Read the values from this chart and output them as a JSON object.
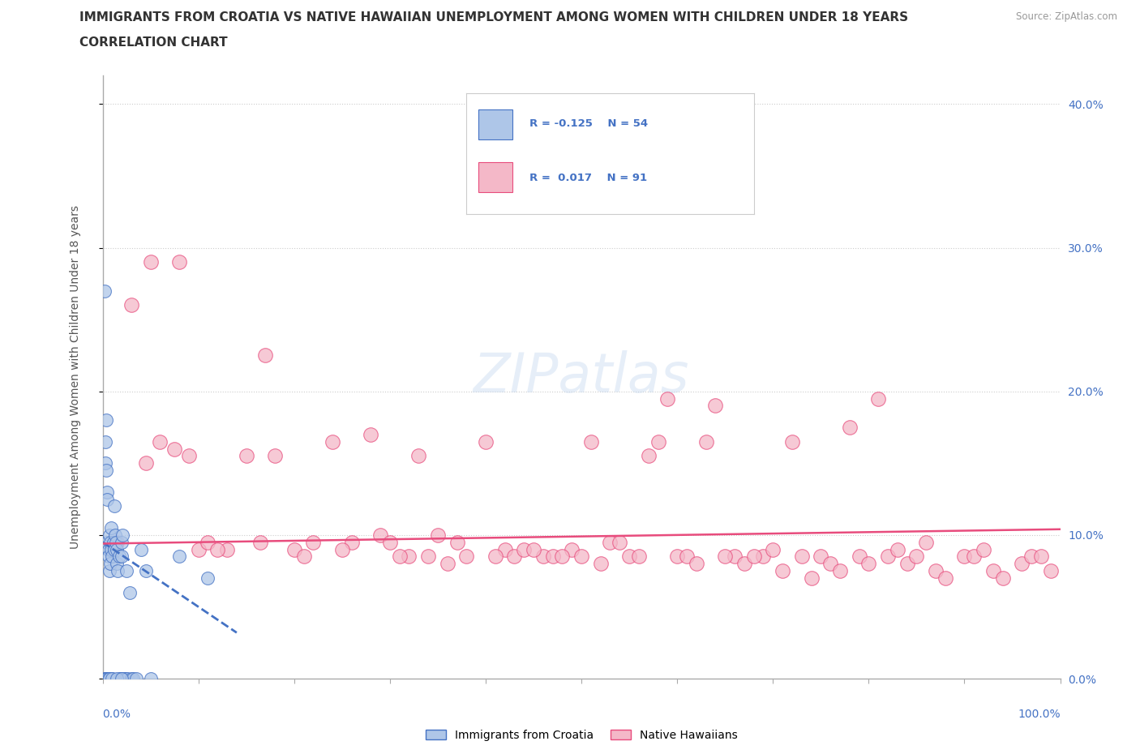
{
  "title": "IMMIGRANTS FROM CROATIA VS NATIVE HAWAIIAN UNEMPLOYMENT AMONG WOMEN WITH CHILDREN UNDER 18 YEARS",
  "subtitle": "CORRELATION CHART",
  "source": "Source: ZipAtlas.com",
  "ylabel": "Unemployment Among Women with Children Under 18 years",
  "xlim": [
    0,
    100
  ],
  "ylim": [
    0,
    42
  ],
  "ytick_vals": [
    0,
    10,
    20,
    30,
    40
  ],
  "ytick_labels": [
    "0.0%",
    "10.0%",
    "20.0%",
    "30.0%",
    "40.0%"
  ],
  "xtick_left_label": "0.0%",
  "xtick_right_label": "100.0%",
  "background_color": "#ffffff",
  "grid_color": "#cccccc",
  "watermark_text": "ZIPatlas",
  "series1_name": "Immigrants from Croatia",
  "series1_face_color": "#aec6e8",
  "series1_edge_color": "#4472c4",
  "series1_R": -0.125,
  "series1_N": 54,
  "series1_line_color": "#4472c4",
  "series1_line_style": "--",
  "series2_name": "Native Hawaiians",
  "series2_face_color": "#f4b8c8",
  "series2_edge_color": "#e84c7d",
  "series2_R": 0.017,
  "series2_N": 91,
  "series2_line_color": "#e84c7d",
  "series2_line_style": "-",
  "title_fontsize": 11,
  "subtitle_fontsize": 11,
  "axis_label_fontsize": 10,
  "tick_label_fontsize": 10,
  "legend_fontsize": 10,
  "title_color": "#333333",
  "axis_color": "#888888",
  "tick_label_color": "#4472c4",
  "croatia_x": [
    0.2,
    0.3,
    0.3,
    0.4,
    0.4,
    0.5,
    0.5,
    0.5,
    0.6,
    0.6,
    0.7,
    0.7,
    0.8,
    0.8,
    0.9,
    0.9,
    1.0,
    1.0,
    1.1,
    1.2,
    1.2,
    1.3,
    1.4,
    1.5,
    1.5,
    1.6,
    1.7,
    1.8,
    1.9,
    2.0,
    2.0,
    2.1,
    2.2,
    2.4,
    2.5,
    2.6,
    2.8,
    3.0,
    3.2,
    3.5,
    4.0,
    4.5,
    5.0,
    0.2,
    0.3,
    0.4,
    0.5,
    0.6,
    0.7,
    1.0,
    1.5,
    2.0,
    8.0,
    11.0
  ],
  "croatia_y": [
    27.0,
    16.5,
    15.0,
    18.0,
    14.5,
    13.0,
    12.5,
    9.5,
    9.0,
    8.5,
    10.0,
    7.5,
    9.5,
    8.0,
    10.5,
    9.0,
    8.5,
    0.0,
    9.5,
    12.0,
    9.0,
    10.0,
    9.5,
    9.0,
    8.0,
    7.5,
    8.5,
    0.0,
    0.0,
    9.5,
    8.5,
    10.0,
    0.0,
    0.0,
    7.5,
    0.0,
    6.0,
    0.0,
    0.0,
    0.0,
    9.0,
    7.5,
    0.0,
    0.0,
    0.0,
    0.0,
    0.0,
    0.0,
    0.0,
    0.0,
    0.0,
    0.0,
    8.5,
    7.0
  ],
  "hawaii_x": [
    1.5,
    3.0,
    4.5,
    6.0,
    7.5,
    9.0,
    10.0,
    11.0,
    13.0,
    15.0,
    16.5,
    18.0,
    20.0,
    22.0,
    24.0,
    26.0,
    28.0,
    29.0,
    30.0,
    32.0,
    33.0,
    34.0,
    35.0,
    37.0,
    38.0,
    40.0,
    42.0,
    43.0,
    44.0,
    46.0,
    47.0,
    49.0,
    50.0,
    51.0,
    52.0,
    53.0,
    55.0,
    57.0,
    58.0,
    60.0,
    61.0,
    63.0,
    64.0,
    66.0,
    67.0,
    69.0,
    70.0,
    72.0,
    73.0,
    75.0,
    76.0,
    78.0,
    79.0,
    81.0,
    82.0,
    84.0,
    85.0,
    87.0,
    88.0,
    90.0,
    91.0,
    93.0,
    94.0,
    96.0,
    97.0,
    99.0,
    5.0,
    8.0,
    12.0,
    17.0,
    21.0,
    25.0,
    31.0,
    36.0,
    41.0,
    45.0,
    48.0,
    54.0,
    56.0,
    59.0,
    62.0,
    65.0,
    68.0,
    71.0,
    74.0,
    77.0,
    80.0,
    83.0,
    86.0,
    92.0,
    98.0
  ],
  "hawaii_y": [
    9.5,
    26.0,
    15.0,
    16.5,
    16.0,
    15.5,
    9.0,
    9.5,
    9.0,
    15.5,
    9.5,
    15.5,
    9.0,
    9.5,
    16.5,
    9.5,
    17.0,
    10.0,
    9.5,
    8.5,
    15.5,
    8.5,
    10.0,
    9.5,
    8.5,
    16.5,
    9.0,
    8.5,
    9.0,
    8.5,
    8.5,
    9.0,
    8.5,
    16.5,
    8.0,
    9.5,
    8.5,
    15.5,
    16.5,
    8.5,
    8.5,
    16.5,
    19.0,
    8.5,
    8.0,
    8.5,
    9.0,
    16.5,
    8.5,
    8.5,
    8.0,
    17.5,
    8.5,
    19.5,
    8.5,
    8.0,
    8.5,
    7.5,
    7.0,
    8.5,
    8.5,
    7.5,
    7.0,
    8.0,
    8.5,
    7.5,
    29.0,
    29.0,
    9.0,
    22.5,
    8.5,
    9.0,
    8.5,
    8.0,
    8.5,
    9.0,
    8.5,
    9.5,
    8.5,
    19.5,
    8.0,
    8.5,
    8.5,
    7.5,
    7.0,
    7.5,
    8.0,
    9.0,
    9.5,
    9.0,
    8.5
  ]
}
